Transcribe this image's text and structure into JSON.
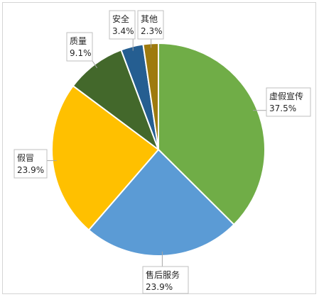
{
  "chart_data": {
    "type": "pie",
    "slices": [
      {
        "label": "虚假宣传",
        "value": 37.5,
        "display": "37.5%",
        "color": "#70AD47"
      },
      {
        "label": "售后服务",
        "value": 23.9,
        "display": "23.9%",
        "color": "#5B9BD5"
      },
      {
        "label": "假冒",
        "value": 23.9,
        "display": "23.9%",
        "color": "#FFC000"
      },
      {
        "label": "质量",
        "value": 9.1,
        "display": "9.1%",
        "color": "#43682B"
      },
      {
        "label": "安全",
        "value": 3.4,
        "display": "3.4%",
        "color": "#255E91"
      },
      {
        "label": "其他",
        "value": 2.3,
        "display": "2.3%",
        "color": "#9E7A0E"
      }
    ],
    "start_angle": "12 o'clock",
    "direction": "clockwise",
    "data_labels": "callouts with leader lines",
    "legend": "none"
  }
}
